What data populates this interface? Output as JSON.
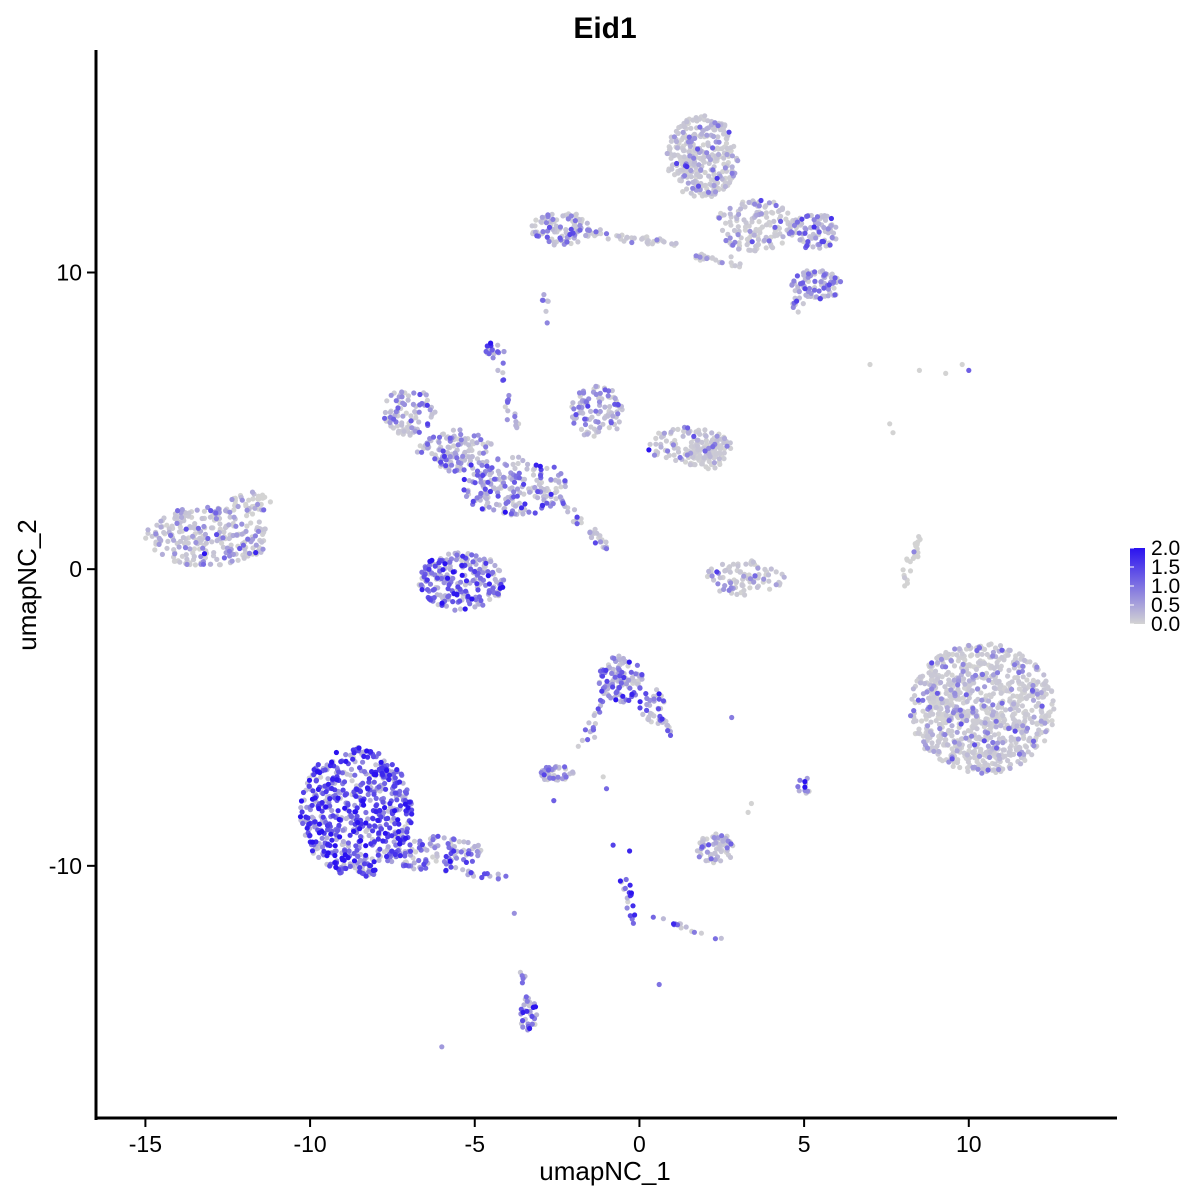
{
  "chart_data": {
    "type": "scatter",
    "title": "Eid1",
    "xlabel": "umapNC_1",
    "ylabel": "umapNC_2",
    "xlim": [
      -16.5,
      14.5
    ],
    "ylim": [
      -18.5,
      17.5
    ],
    "xticks": [
      -15,
      -10,
      -5,
      0,
      5,
      10
    ],
    "xtick_labels": [
      "-15",
      "-10",
      "-5",
      "0",
      "5",
      "10"
    ],
    "yticks": [
      -10,
      0,
      10
    ],
    "ytick_labels": [
      "-10",
      "0",
      "10"
    ],
    "grid": false,
    "legend": {
      "placement": "right",
      "labels": [
        "2.0",
        "1.5",
        "1.0",
        "0.5",
        "0.0"
      ],
      "range": [
        0,
        2
      ]
    },
    "colors": {
      "low": "#d3d3d3",
      "high": "#2a12f0"
    },
    "clusters": [
      {
        "cx": -13.1,
        "cy": 1.1,
        "rx": 1.9,
        "ry": 1.0,
        "n": 260,
        "mean_expr": 0.55
      },
      {
        "cx": -11.8,
        "cy": 2.2,
        "rx": 0.6,
        "ry": 0.5,
        "n": 40,
        "mean_expr": 0.2
      },
      {
        "cx": -8.6,
        "cy": -8.2,
        "rx": 1.7,
        "ry": 2.2,
        "n": 620,
        "mean_expr": 1.4
      },
      {
        "cx": -6.2,
        "cy": -9.6,
        "rx": 1.5,
        "ry": 0.6,
        "n": 110,
        "mean_expr": 1.1
      },
      {
        "cx": -5.4,
        "cy": -0.4,
        "rx": 1.3,
        "ry": 1.0,
        "n": 230,
        "mean_expr": 1.2
      },
      {
        "cx": -7.0,
        "cy": 5.3,
        "rx": 0.8,
        "ry": 0.8,
        "n": 90,
        "mean_expr": 0.8
      },
      {
        "cx": -5.6,
        "cy": 4.0,
        "rx": 1.2,
        "ry": 0.7,
        "n": 120,
        "mean_expr": 0.8
      },
      {
        "cx": -3.8,
        "cy": 2.8,
        "rx": 1.6,
        "ry": 1.0,
        "n": 200,
        "mean_expr": 0.9
      },
      {
        "cx": -1.3,
        "cy": 5.3,
        "rx": 0.8,
        "ry": 0.9,
        "n": 100,
        "mean_expr": 0.8
      },
      {
        "cx": 1.5,
        "cy": 4.2,
        "rx": 1.3,
        "ry": 0.6,
        "n": 110,
        "mean_expr": 0.5
      },
      {
        "cx": 2.0,
        "cy": 3.8,
        "rx": 0.6,
        "ry": 0.5,
        "n": 60,
        "mean_expr": 0.3
      },
      {
        "cx": -4.4,
        "cy": 7.4,
        "rx": 0.3,
        "ry": 0.3,
        "n": 20,
        "mean_expr": 1.0
      },
      {
        "cx": 3.2,
        "cy": -0.3,
        "rx": 1.2,
        "ry": 0.6,
        "n": 90,
        "mean_expr": 0.5
      },
      {
        "cx": 1.9,
        "cy": 13.9,
        "rx": 1.1,
        "ry": 1.4,
        "n": 320,
        "mean_expr": 0.45
      },
      {
        "cx": 3.5,
        "cy": 11.6,
        "rx": 1.2,
        "ry": 0.9,
        "n": 140,
        "mean_expr": 0.45
      },
      {
        "cx": 5.3,
        "cy": 11.4,
        "rx": 0.8,
        "ry": 0.6,
        "n": 90,
        "mean_expr": 0.7
      },
      {
        "cx": 5.4,
        "cy": 9.6,
        "rx": 0.8,
        "ry": 0.5,
        "n": 80,
        "mean_expr": 0.9
      },
      {
        "cx": -2.4,
        "cy": 11.5,
        "rx": 0.9,
        "ry": 0.6,
        "n": 100,
        "mean_expr": 0.6
      },
      {
        "cx": 10.4,
        "cy": -4.7,
        "rx": 2.2,
        "ry": 2.2,
        "n": 900,
        "mean_expr": 0.4
      },
      {
        "cx": -0.6,
        "cy": -3.7,
        "rx": 0.7,
        "ry": 0.8,
        "n": 110,
        "mean_expr": 1.0
      },
      {
        "cx": 0.4,
        "cy": -4.6,
        "rx": 0.4,
        "ry": 0.6,
        "n": 30,
        "mean_expr": 0.9
      },
      {
        "cx": -2.5,
        "cy": -6.9,
        "rx": 0.5,
        "ry": 0.3,
        "n": 40,
        "mean_expr": 0.9
      },
      {
        "cx": 2.3,
        "cy": -9.4,
        "rx": 0.6,
        "ry": 0.5,
        "n": 70,
        "mean_expr": 0.6
      },
      {
        "cx": 5.0,
        "cy": -7.3,
        "rx": 0.2,
        "ry": 0.3,
        "n": 12,
        "mean_expr": 1.2
      },
      {
        "cx": -3.4,
        "cy": -15.0,
        "rx": 0.3,
        "ry": 0.6,
        "n": 30,
        "mean_expr": 1.0
      }
    ],
    "paths": [
      {
        "x0": -3.0,
        "y0": 2.8,
        "x1": -1.2,
        "y1": 1.0,
        "n": 30,
        "mean_expr": 0.8
      },
      {
        "x0": -1.2,
        "y0": 1.0,
        "x1": -1.0,
        "y1": 0.6,
        "n": 10,
        "mean_expr": 0.6
      },
      {
        "x0": -4.3,
        "y0": 7.0,
        "x1": -3.6,
        "y1": 4.4,
        "n": 18,
        "mean_expr": 1.0
      },
      {
        "x0": -1.6,
        "y0": 11.3,
        "x1": 1.2,
        "y1": 11.0,
        "n": 40,
        "mean_expr": 0.5
      },
      {
        "x0": 1.4,
        "y0": 10.6,
        "x1": 3.2,
        "y1": 10.2,
        "n": 25,
        "mean_expr": 0.5
      },
      {
        "x0": 4.8,
        "y0": 9.3,
        "x1": 4.6,
        "y1": 8.6,
        "n": 10,
        "mean_expr": 1.0
      },
      {
        "x0": 0.5,
        "y0": -5.0,
        "x1": 1.2,
        "y1": -5.6,
        "n": 15,
        "mean_expr": 1.0
      },
      {
        "x0": -1.0,
        "y0": -4.2,
        "x1": -1.8,
        "y1": -6.2,
        "n": 18,
        "mean_expr": 1.0
      },
      {
        "x0": -0.5,
        "y0": -10.4,
        "x1": -0.1,
        "y1": -12.1,
        "n": 18,
        "mean_expr": 1.5
      },
      {
        "x0": 0.5,
        "y0": -11.7,
        "x1": 2.4,
        "y1": -12.5,
        "n": 16,
        "mean_expr": 0.9
      },
      {
        "x0": 8.0,
        "y0": -0.5,
        "x1": 8.5,
        "y1": 1.2,
        "n": 25,
        "mean_expr": 0.0
      },
      {
        "x0": 8.9,
        "y0": -4.0,
        "x1": 9.2,
        "y1": -5.6,
        "n": 20,
        "mean_expr": 0.1
      },
      {
        "x0": -5.2,
        "y0": -10.2,
        "x1": -3.9,
        "y1": -10.4,
        "n": 14,
        "mean_expr": 1.0
      },
      {
        "x0": -3.6,
        "y0": -13.6,
        "x1": -3.3,
        "y1": -15.4,
        "n": 12,
        "mean_expr": 1.0
      },
      {
        "x0": -2.9,
        "y0": 9.2,
        "x1": -2.8,
        "y1": 8.6,
        "n": 6,
        "mean_expr": 0.8
      }
    ],
    "isolated_points": [
      {
        "x": 7.0,
        "y": 6.9,
        "expr": 0.0
      },
      {
        "x": 8.5,
        "y": 6.7,
        "expr": 0.0
      },
      {
        "x": 9.3,
        "y": 6.6,
        "expr": 0.0
      },
      {
        "x": 9.8,
        "y": 6.9,
        "expr": 0.0
      },
      {
        "x": 10.0,
        "y": 6.7,
        "expr": 1.2
      },
      {
        "x": 7.6,
        "y": 4.9,
        "expr": 0.0
      },
      {
        "x": 7.7,
        "y": 4.6,
        "expr": 0.0
      },
      {
        "x": 2.8,
        "y": -5.0,
        "expr": 0.9
      },
      {
        "x": -1.1,
        "y": -7.0,
        "expr": 0.0
      },
      {
        "x": -1.0,
        "y": -7.4,
        "expr": 1.1
      },
      {
        "x": -2.6,
        "y": -7.8,
        "expr": 1.2
      },
      {
        "x": 3.3,
        "y": -8.2,
        "expr": 0.0
      },
      {
        "x": 3.4,
        "y": -7.9,
        "expr": 0.0
      },
      {
        "x": -0.8,
        "y": -9.3,
        "expr": 1.5
      },
      {
        "x": -0.3,
        "y": -9.5,
        "expr": 1.8
      },
      {
        "x": 0.6,
        "y": -14.0,
        "expr": 1.0
      },
      {
        "x": -6.0,
        "y": -16.1,
        "expr": 0.6
      },
      {
        "x": -3.8,
        "y": -11.6,
        "expr": 0.7
      },
      {
        "x": -2.8,
        "y": 8.3,
        "expr": 0.8
      }
    ]
  }
}
